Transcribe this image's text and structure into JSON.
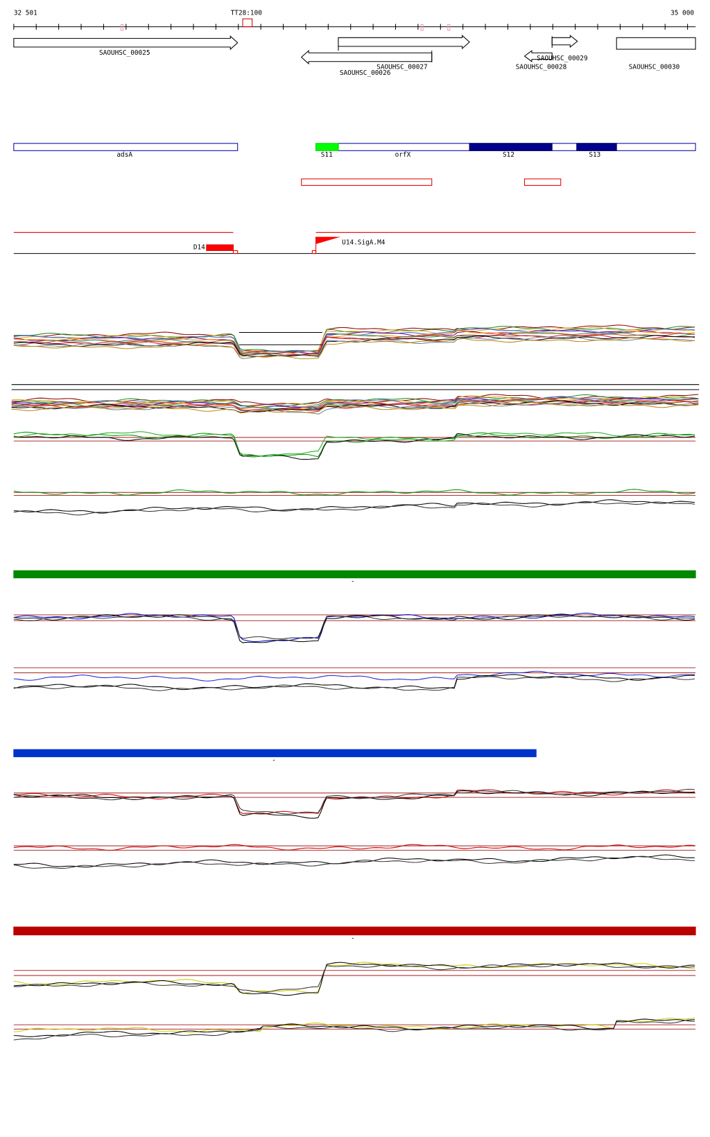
{
  "ruler": {
    "start": "32 501",
    "marker": "TT28:100",
    "end": "35 000"
  },
  "genes": [
    "SAOUHSC_00025",
    "SAOUHSC_00027",
    "SAOUHSC_00026",
    "SAOUHSC_00029",
    "SAOUHSC_00028",
    "SAOUHSC_00030"
  ],
  "segments": [
    "adsA",
    "S11",
    "orfX",
    "S12",
    "S13"
  ],
  "terminators": {
    "down": "D14",
    "up": "U14.SigA.M4"
  },
  "strain_markers": [
    "-",
    "-",
    "-"
  ]
}
